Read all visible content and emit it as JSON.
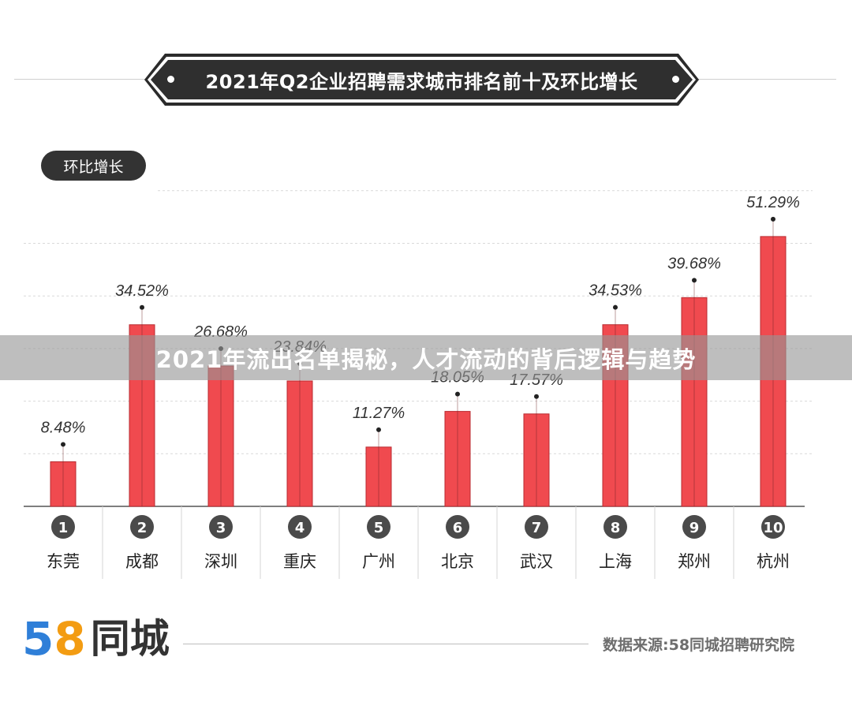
{
  "header": {
    "title": "2021年Q2企业招聘需求城市排名前十及环比增长"
  },
  "section_label": "环比增长",
  "banner": {
    "text": "2021年流出名单揭秘，人才流动的背后逻辑与趋势"
  },
  "footer": {
    "logo_digit_5": "5",
    "logo_digit_8": "8",
    "logo_name": "同城",
    "source": "数据来源:58同城招聘研究院"
  },
  "colors": {
    "bar": "#f04a4f",
    "bar_edge": "#b92b30",
    "badge": "#2f2f2f",
    "accent_blue": "#2f7fd8",
    "accent_orange": "#f39c12"
  },
  "chart_data": {
    "type": "bar",
    "title": "2021年Q2企业招聘需求城市排名前十及环比增长",
    "ylabel": "环比增长",
    "ylim": [
      0,
      60
    ],
    "grid": true,
    "ranks": [
      "1",
      "2",
      "3",
      "4",
      "5",
      "6",
      "7",
      "8",
      "9",
      "10"
    ],
    "categories": [
      "东莞",
      "成都",
      "深圳",
      "重庆",
      "广州",
      "北京",
      "武汉",
      "上海",
      "郑州",
      "杭州"
    ],
    "values": [
      8.48,
      34.52,
      26.68,
      23.84,
      11.27,
      18.05,
      17.57,
      34.53,
      39.68,
      51.29
    ],
    "value_labels": [
      "8.48%",
      "34.52%",
      "26.68%",
      "23.84%",
      "11.27%",
      "18.05%",
      "17.57%",
      "34.53%",
      "39.68%",
      "51.29%"
    ]
  }
}
